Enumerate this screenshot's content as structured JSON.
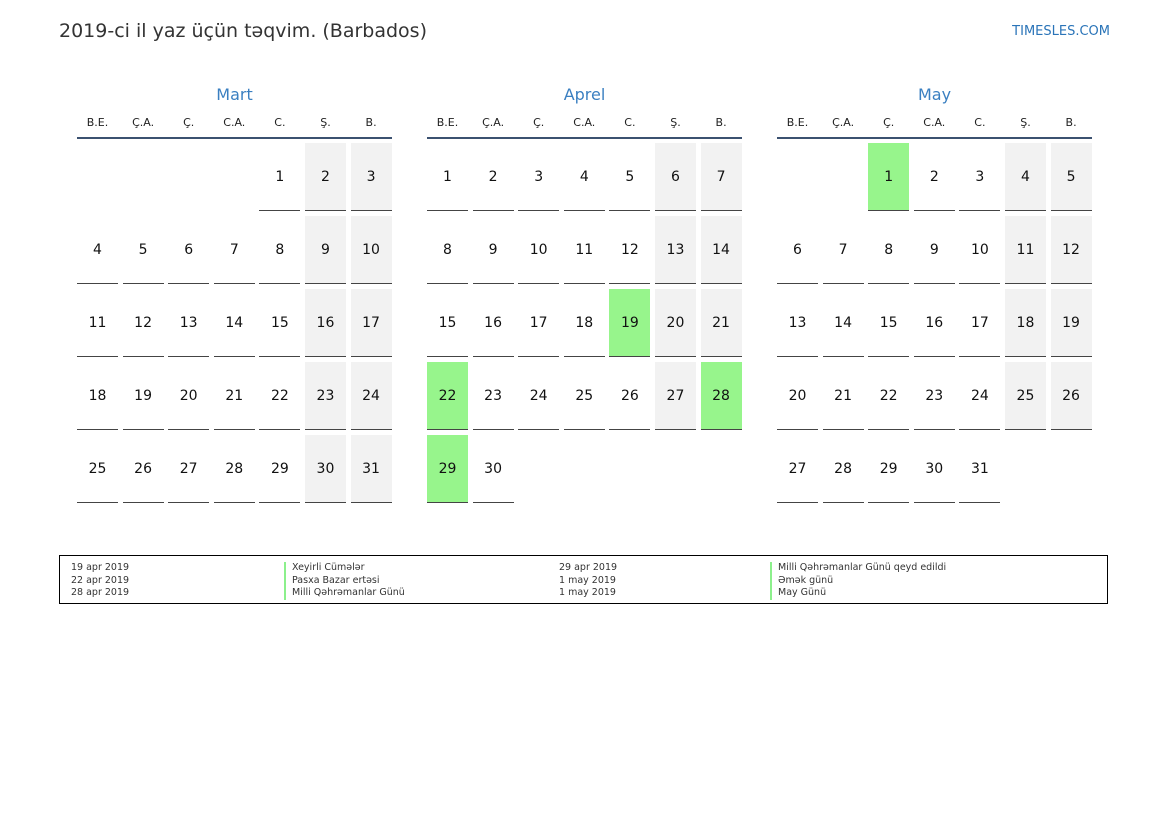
{
  "header": {
    "title": "2019-ci il yaz üçün təqvim. (Barbados)",
    "brand": "TIMESLES.COM"
  },
  "colors": {
    "accent": "#3a7fc1",
    "holiday": "#97f58c",
    "weekend": "#f2f2f2"
  },
  "weekdays": [
    "B.E.",
    "Ç.A.",
    "Ç.",
    "C.A.",
    "C.",
    "Ş.",
    "B."
  ],
  "months": [
    {
      "name": "Mart",
      "offset": 4,
      "days": 31,
      "holidays": []
    },
    {
      "name": "Aprel",
      "offset": 0,
      "days": 30,
      "holidays": [
        19,
        22,
        28,
        29
      ]
    },
    {
      "name": "May",
      "offset": 2,
      "days": 31,
      "holidays": [
        1
      ]
    }
  ],
  "legend": {
    "left": [
      {
        "date": "19 apr 2019",
        "name": "Xeyirli Cümələr"
      },
      {
        "date": "22 apr 2019",
        "name": "Pasxa Bazar ertəsi"
      },
      {
        "date": "28 apr 2019",
        "name": "Milli Qəhrəmanlar Günü"
      }
    ],
    "right": [
      {
        "date": "29 apr 2019",
        "name": "Milli Qəhrəmanlar Günü qeyd edildi"
      },
      {
        "date": "1 may 2019",
        "name": "Əmək günü"
      },
      {
        "date": "1 may 2019",
        "name": "May Günü"
      }
    ]
  }
}
